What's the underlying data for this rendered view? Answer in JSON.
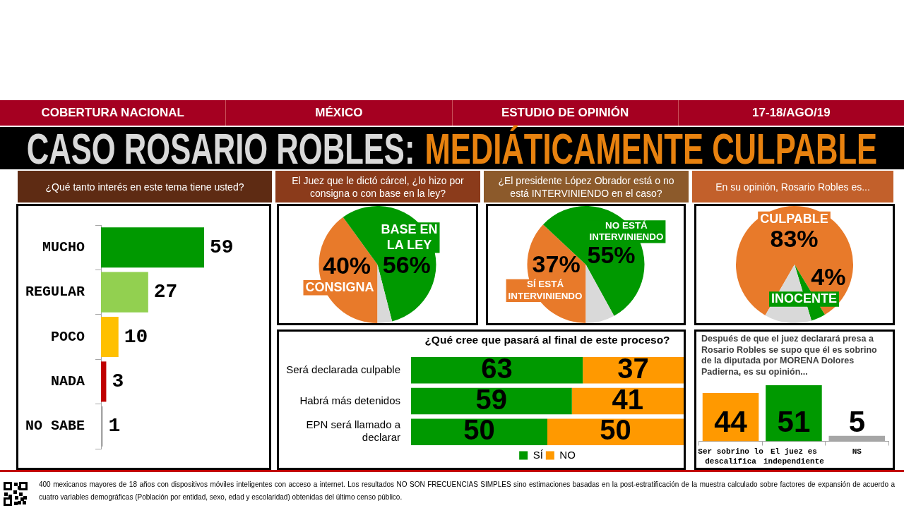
{
  "chart_data": [
    {
      "type": "other",
      "title": "CASO ROSARIO ROBLES:",
      "subtitle": "MEDIÁTICAMENTE CULPABLE",
      "annotations": [
        "COBERTURA NACIONAL",
        "MÉXICO",
        "ESTUDIO DE OPINIÓN",
        "17-18/AGO/19",
        "400 mexicanos mayores de 18 años con dispositivos móviles inteligentes con acceso a internet. Los resultados NO SON FRECUENCIAS SIMPLES sino estimaciones basadas en la post-estratificación de la muestra calculado sobre factores de expansión de acuerdo a cuatro variables demográficas (Población por entidad, sexo, edad y escolaridad) obtenidas del último censo público."
      ]
    },
    {
      "type": "bar",
      "orientation": "horizontal",
      "title": "¿Qué tanto interés en este tema tiene usted?",
      "categories": [
        "MUCHO",
        "REGULAR",
        "POCO",
        "NADA",
        "NO SABE"
      ],
      "values": [
        59,
        27,
        10,
        3,
        1
      ],
      "colors": [
        "#009900",
        "#92d050",
        "#ffc000",
        "#c00000",
        "#a6a6a6"
      ],
      "data_labels": true
    },
    {
      "type": "pie",
      "title": "El Juez que le dictó cárcel, ¿lo hizo por consigna o con base en la ley?",
      "categories": [
        "CONSIGNA",
        "BASE EN LA LEY",
        null
      ],
      "values": [
        40,
        56,
        4
      ],
      "colors": [
        "#e87a2a",
        "#009900",
        "#d9d9d9"
      ],
      "value_labels": [
        "40%",
        "56%",
        null
      ]
    },
    {
      "type": "pie",
      "title": "¿El presidente López Obrador está o no está INTERVINIENDO en el caso?",
      "categories": [
        "SÍ ESTÁ INTERVINIENDO",
        "NO ESTÁ INTERVINIENDO",
        null
      ],
      "values": [
        37,
        55,
        8
      ],
      "colors": [
        "#e87a2a",
        "#009900",
        "#d9d9d9"
      ],
      "value_labels": [
        "37%",
        "55%",
        null
      ]
    },
    {
      "type": "pie",
      "title": "En su opinión, Rosario Robles es...",
      "categories": [
        "CULPABLE",
        "INOCENTE",
        null
      ],
      "values": [
        83,
        4,
        13
      ],
      "colors": [
        "#e87a2a",
        "#009900",
        "#d9d9d9"
      ],
      "value_labels": [
        "83%",
        "4%",
        null
      ]
    },
    {
      "type": "bar",
      "orientation": "horizontal",
      "stacked": true,
      "title": "¿Qué cree que pasará al final de este proceso?",
      "categories": [
        "Será declarada culpable",
        "Habrá más detenidos",
        "EPN será llamado a declarar"
      ],
      "series": [
        {
          "name": "SÍ",
          "color": "#009900",
          "values": [
            63,
            59,
            50
          ]
        },
        {
          "name": "NO",
          "color": "#ff9900",
          "values": [
            37,
            41,
            50
          ]
        }
      ],
      "data_labels": true,
      "legend": "bottom"
    },
    {
      "type": "bar",
      "title": "Después de que el juez declarará presa a Rosario Robles se supo que él es sobrino de la diputada por MORENA Dolores Padierna, es su opinión...",
      "categories": [
        "Ser sobrino lo descalifica",
        "El juez es independiente",
        "NS"
      ],
      "values": [
        44,
        51,
        5
      ],
      "colors": [
        "#ff9900",
        "#009900",
        "#a6a6a6"
      ],
      "data_labels": true
    }
  ]
}
